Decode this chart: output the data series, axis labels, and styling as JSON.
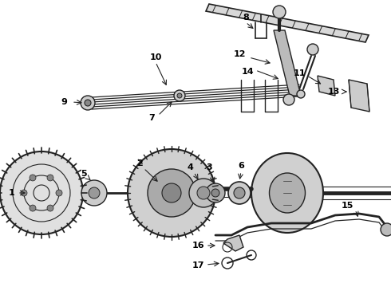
{
  "bg_color": "#ffffff",
  "lc": "#222222",
  "figsize": [
    4.9,
    3.6
  ],
  "dpi": 100,
  "aspect": "equal"
}
